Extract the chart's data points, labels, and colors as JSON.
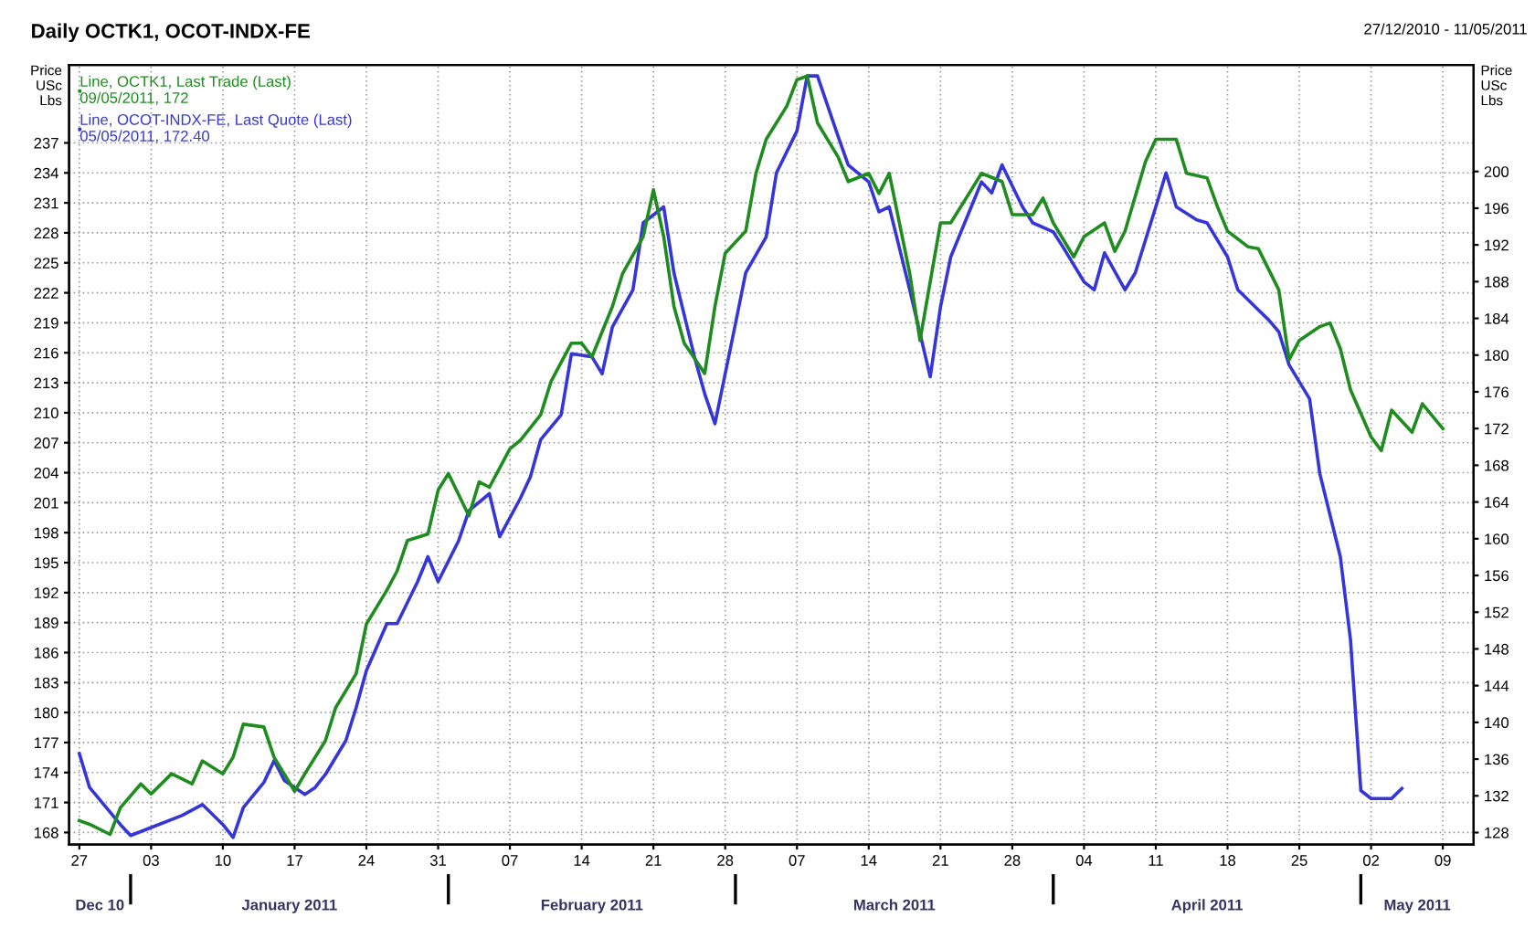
{
  "chart_data": {
    "type": "line",
    "title": "Daily OCTK1, OCOT-INDX-FE",
    "subtitle": "27/12/2010 - 11/05/2011",
    "ylabel": "Price USc Lbs",
    "y2label": "Price USc Lbs",
    "xlim": [
      "2010-12-26",
      "2011-05-12"
    ],
    "xticks": [
      {
        "value": "2010-12-27",
        "label": "27"
      },
      {
        "value": "2011-01-03",
        "label": "03"
      },
      {
        "value": "2011-01-10",
        "label": "10"
      },
      {
        "value": "2011-01-17",
        "label": "17"
      },
      {
        "value": "2011-01-24",
        "label": "24"
      },
      {
        "value": "2011-01-31",
        "label": "31"
      },
      {
        "value": "2011-02-07",
        "label": "07"
      },
      {
        "value": "2011-02-14",
        "label": "14"
      },
      {
        "value": "2011-02-21",
        "label": "21"
      },
      {
        "value": "2011-02-28",
        "label": "28"
      },
      {
        "value": "2011-03-07",
        "label": "07"
      },
      {
        "value": "2011-03-14",
        "label": "14"
      },
      {
        "value": "2011-03-21",
        "label": "21"
      },
      {
        "value": "2011-03-28",
        "label": "28"
      },
      {
        "value": "2011-04-04",
        "label": "04"
      },
      {
        "value": "2011-04-11",
        "label": "11"
      },
      {
        "value": "2011-04-18",
        "label": "18"
      },
      {
        "value": "2011-04-25",
        "label": "25"
      },
      {
        "value": "2011-05-02",
        "label": "02"
      },
      {
        "value": "2011-05-09",
        "label": "09"
      }
    ],
    "ylim": [
      166.8,
      244.8
    ],
    "yticks": [
      168,
      171,
      174,
      177,
      180,
      183,
      186,
      189,
      192,
      195,
      198,
      201,
      204,
      207,
      210,
      213,
      216,
      219,
      222,
      225,
      228,
      231,
      234,
      237
    ],
    "y2lim": [
      126.7,
      211.6
    ],
    "y2ticks": [
      128,
      132,
      136,
      140,
      144,
      148,
      152,
      156,
      160,
      164,
      168,
      172,
      176,
      180,
      184,
      188,
      192,
      196,
      200
    ],
    "grid": true,
    "legend": "top left",
    "marker": "none",
    "line_style": "solid",
    "annotations": [
      "Dec 10",
      "January 2011",
      "February 2011",
      "March 2011",
      "April 2011",
      "May 2011"
    ],
    "series": [
      {
        "name": "Line, OCTK1, Last Trade (Last)\n09/05/2011, 172",
        "color": "#1e8c1e",
        "axis": "y2",
        "x": [
          "2010-12-27",
          "2010-12-28",
          "2010-12-30",
          "2010-12-31",
          "2011-01-02",
          "2011-01-03",
          "2011-01-05",
          "2011-01-07",
          "2011-01-08",
          "2011-01-10",
          "2011-01-11",
          "2011-01-12",
          "2011-01-14",
          "2011-01-15",
          "2011-01-17",
          "2011-01-18",
          "2011-01-20",
          "2011-01-21",
          "2011-01-23",
          "2011-01-24",
          "2011-01-26",
          "2011-01-27",
          "2011-01-28",
          "2011-01-30",
          "2011-01-31",
          "2011-02-01",
          "2011-02-03",
          "2011-02-04",
          "2011-02-05",
          "2011-02-07",
          "2011-02-08",
          "2011-02-10",
          "2011-02-11",
          "2011-02-13",
          "2011-02-14",
          "2011-02-15",
          "2011-02-17",
          "2011-02-18",
          "2011-02-20",
          "2011-02-21",
          "2011-02-22",
          "2011-02-23",
          "2011-02-24",
          "2011-02-26",
          "2011-02-27",
          "2011-02-28",
          "2011-03-02",
          "2011-03-03",
          "2011-03-04",
          "2011-03-06",
          "2011-03-07",
          "2011-03-08",
          "2011-03-09",
          "2011-03-11",
          "2011-03-12",
          "2011-03-14",
          "2011-03-15",
          "2011-03-16",
          "2011-03-18",
          "2011-03-19",
          "2011-03-20",
          "2011-03-21",
          "2011-03-22",
          "2011-03-24",
          "2011-03-25",
          "2011-03-27",
          "2011-03-28",
          "2011-03-30",
          "2011-03-31",
          "2011-04-01",
          "2011-04-03",
          "2011-04-04",
          "2011-04-06",
          "2011-04-07",
          "2011-04-08",
          "2011-04-10",
          "2011-04-11",
          "2011-04-13",
          "2011-04-14",
          "2011-04-16",
          "2011-04-17",
          "2011-04-18",
          "2011-04-20",
          "2011-04-21",
          "2011-04-23",
          "2011-04-24",
          "2011-04-25",
          "2011-04-27",
          "2011-04-28",
          "2011-04-29",
          "2011-04-30",
          "2011-05-02",
          "2011-05-03",
          "2011-05-04",
          "2011-05-06",
          "2011-05-07",
          "2011-05-09"
        ],
        "values": [
          129.3,
          128.9,
          127.8,
          130.7,
          133.3,
          132.2,
          134.4,
          133.3,
          135.8,
          134.4,
          136.2,
          139.8,
          139.5,
          136.2,
          132.5,
          134.4,
          138,
          141.6,
          145.3,
          150.7,
          154.4,
          156.5,
          159.8,
          160.5,
          165.3,
          167.1,
          162.5,
          166.2,
          165.6,
          169.8,
          170.7,
          173.5,
          177.1,
          181.3,
          181.3,
          179.8,
          185.3,
          188.9,
          192.9,
          198,
          192.9,
          185.3,
          181.3,
          178,
          185.3,
          191.1,
          193.5,
          199.8,
          203.5,
          207.1,
          210,
          210.4,
          205.3,
          201.6,
          198.9,
          199.8,
          197.6,
          199.8,
          188.9,
          181.6,
          188,
          194.4,
          194.4,
          198,
          199.8,
          198.9,
          195.3,
          195.3,
          197.1,
          194.4,
          190.7,
          192.9,
          194.4,
          191.3,
          193.5,
          201.1,
          203.5,
          203.5,
          199.8,
          199.3,
          196.2,
          193.5,
          191.8,
          191.6,
          187.1,
          179.5,
          181.6,
          183.1,
          183.5,
          180.7,
          176.2,
          171.1,
          169.6,
          174,
          171.6,
          174.7,
          172
        ]
      },
      {
        "name": "Line, OCOT-INDX-FE, Last Quote (Last)\n05/05/2011, 172.40",
        "color": "#3636d8",
        "axis": "y",
        "x": [
          "2010-12-27",
          "2010-12-28",
          "2010-12-31",
          "2011-01-01",
          "2011-01-03",
          "2011-01-06",
          "2011-01-08",
          "2011-01-10",
          "2011-01-11",
          "2011-01-12",
          "2011-01-14",
          "2011-01-15",
          "2011-01-16",
          "2011-01-18",
          "2011-01-19",
          "2011-01-20",
          "2011-01-22",
          "2011-01-23",
          "2011-01-24",
          "2011-01-26",
          "2011-01-27",
          "2011-01-29",
          "2011-01-30",
          "2011-01-31",
          "2011-02-02",
          "2011-02-03",
          "2011-02-05",
          "2011-02-06",
          "2011-02-08",
          "2011-02-09",
          "2011-02-10",
          "2011-02-12",
          "2011-02-13",
          "2011-02-15",
          "2011-02-16",
          "2011-02-17",
          "2011-02-19",
          "2011-02-20",
          "2011-02-22",
          "2011-02-23",
          "2011-02-25",
          "2011-02-26",
          "2011-02-27",
          "2011-03-01",
          "2011-03-02",
          "2011-03-04",
          "2011-03-05",
          "2011-03-07",
          "2011-03-08",
          "2011-03-09",
          "2011-03-11",
          "2011-03-12",
          "2011-03-14",
          "2011-03-15",
          "2011-03-16",
          "2011-03-18",
          "2011-03-20",
          "2011-03-21",
          "2011-03-22",
          "2011-03-24",
          "2011-03-25",
          "2011-03-26",
          "2011-03-27",
          "2011-03-29",
          "2011-03-30",
          "2011-04-01",
          "2011-04-02",
          "2011-04-04",
          "2011-04-05",
          "2011-04-06",
          "2011-04-08",
          "2011-04-09",
          "2011-04-11",
          "2011-04-12",
          "2011-04-13",
          "2011-04-15",
          "2011-04-16",
          "2011-04-18",
          "2011-04-19",
          "2011-04-21",
          "2011-04-22",
          "2011-04-23",
          "2011-04-24",
          "2011-04-26",
          "2011-04-27",
          "2011-04-29",
          "2011-04-30",
          "2011-05-01",
          "2011-05-02",
          "2011-05-04",
          "2011-05-05"
        ],
        "values": [
          175.9,
          172.5,
          168.8,
          167.7,
          168.5,
          169.7,
          170.8,
          168.8,
          167.5,
          170.5,
          173,
          175.2,
          173.2,
          171.8,
          172.5,
          173.8,
          177.2,
          180.5,
          184.2,
          188.9,
          188.9,
          193.1,
          195.6,
          193.1,
          197.2,
          200.2,
          201.9,
          197.6,
          201.4,
          203.6,
          207.3,
          209.8,
          215.9,
          215.6,
          213.9,
          218.6,
          222.3,
          229,
          230.6,
          224,
          215.6,
          211.9,
          208.9,
          218.9,
          224,
          227.6,
          234,
          238.2,
          243.7,
          243.7,
          237.7,
          234.8,
          233.1,
          230.1,
          230.6,
          222.3,
          213.6,
          220.6,
          225.6,
          230.6,
          233.1,
          232,
          234.8,
          230.6,
          229,
          228.1,
          226.5,
          223.1,
          222.3,
          226,
          222.3,
          224,
          230.6,
          234,
          230.6,
          229.3,
          229,
          225.6,
          222.3,
          220.3,
          219.3,
          218.1,
          214.8,
          211.4,
          203.9,
          195.6,
          187.2,
          172.2,
          171.4,
          171.4,
          172.4
        ]
      }
    ]
  }
}
